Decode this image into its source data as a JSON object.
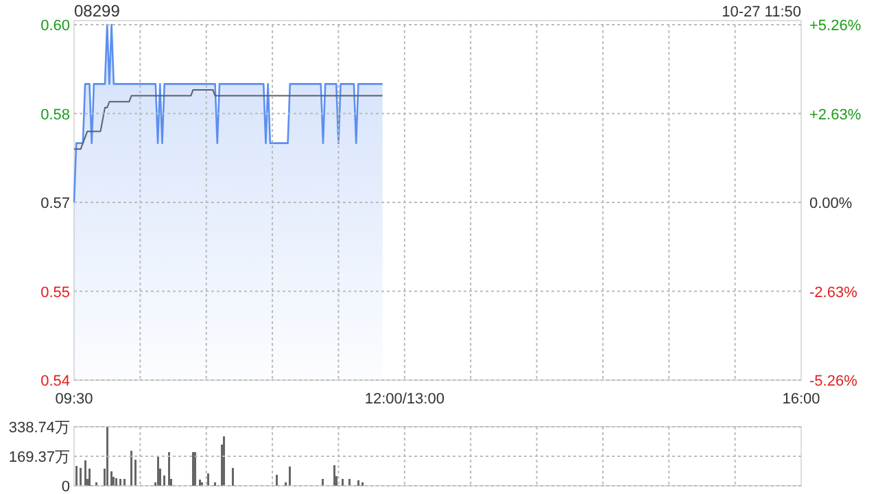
{
  "chart_data": [
    {
      "type": "line",
      "title": "08299",
      "annotations": [
        "10-27 11:50"
      ],
      "categories": [
        "09:30",
        null,
        null,
        null,
        null,
        null,
        null,
        null,
        null,
        null,
        null,
        null,
        null,
        null,
        null,
        null,
        null,
        null,
        null,
        null,
        null,
        null,
        null,
        null,
        null,
        null,
        null,
        null,
        null,
        null,
        null,
        null,
        null,
        null,
        null,
        null,
        null,
        null,
        null,
        null,
        null,
        null,
        null,
        null,
        null,
        null,
        null,
        null,
        null,
        null,
        null,
        null,
        null,
        null,
        null,
        null,
        null,
        null,
        null,
        null,
        null,
        null,
        null,
        null,
        null,
        null,
        null,
        null,
        null,
        null,
        null,
        null,
        null,
        null,
        null,
        null,
        null,
        null,
        null,
        null,
        null,
        null,
        null,
        null,
        null,
        null,
        null,
        null,
        null,
        null,
        null,
        null,
        null,
        null,
        null,
        null,
        null,
        null,
        null,
        null,
        null,
        null,
        null,
        null,
        null,
        null,
        null,
        null,
        null,
        null,
        null,
        null,
        null,
        null,
        null,
        null,
        null,
        null,
        null,
        null,
        null,
        null,
        null,
        null,
        null,
        null,
        null,
        null,
        null,
        null,
        null,
        null,
        null,
        null,
        null,
        null,
        null,
        null,
        null,
        null,
        null,
        null,
        null,
        null,
        null,
        null,
        null,
        null,
        null,
        null,
        "12:00/13:00",
        null,
        null,
        null,
        null,
        null,
        null,
        null,
        null,
        null,
        null,
        null,
        null,
        null,
        null,
        null,
        null,
        null,
        null,
        null,
        null,
        null,
        null,
        null,
        null,
        null,
        null,
        null,
        null,
        null,
        null,
        null,
        null,
        null,
        null,
        null,
        null,
        null,
        null,
        null,
        null,
        null,
        null,
        null,
        null,
        null,
        null,
        null,
        null,
        null,
        null,
        null,
        null,
        null,
        null,
        null,
        null,
        null,
        null,
        null,
        null,
        null,
        null,
        null,
        null,
        null,
        null,
        null,
        null,
        null,
        null,
        null,
        null,
        null,
        null,
        null,
        null,
        null,
        null,
        null,
        null,
        null,
        null,
        null,
        null,
        null,
        null,
        null,
        null,
        null,
        null,
        null,
        null,
        null,
        null,
        null,
        null,
        null,
        null,
        null,
        null,
        null,
        null,
        null,
        null,
        null,
        null,
        null,
        null,
        null,
        null,
        null,
        null,
        null,
        null,
        null,
        null,
        null,
        null,
        null,
        null,
        null,
        null,
        null,
        null,
        null,
        null,
        null,
        null,
        null,
        null,
        null,
        null,
        null,
        null,
        null,
        null,
        null,
        null,
        null,
        null,
        null,
        null,
        null,
        null,
        null,
        null,
        null,
        null,
        null,
        null,
        null,
        null,
        null,
        null,
        null,
        null,
        null,
        null,
        null,
        null,
        null,
        null,
        null,
        null,
        null,
        null,
        null,
        null,
        null,
        null,
        null,
        null,
        null,
        null,
        null,
        null,
        null,
        null,
        null,
        "16:00"
      ],
      "ylim": [
        0.54,
        0.6
      ],
      "yticks": [
        {
          "value": 0.54,
          "label": "0.54"
        },
        {
          "value": 0.555,
          "label": "0.55"
        },
        {
          "value": 0.57,
          "label": "0.57"
        },
        {
          "value": 0.585,
          "label": "0.58"
        },
        {
          "value": 0.6,
          "label": "0.60"
        }
      ],
      "y2lim": [
        -5.26,
        5.26
      ],
      "y2ticks": [
        {
          "value": -5.26,
          "label": "-5.26%"
        },
        {
          "value": -2.63,
          "label": "-2.63%"
        },
        {
          "value": 0,
          "label": "0.00%"
        },
        {
          "value": 2.63,
          "label": "+2.63%"
        },
        {
          "value": 5.26,
          "label": "+5.26%"
        }
      ],
      "grid": true,
      "series": [
        {
          "type": "area",
          "color": "#5b8ff0",
          "values": [
            0.57,
            0.58,
            0.58,
            0.58,
            0.58,
            0.59,
            0.59,
            0.59,
            0.58,
            0.59,
            0.59,
            0.59,
            0.59,
            0.59,
            0.59,
            0.6,
            0.59,
            0.6,
            0.59,
            0.59,
            0.59,
            0.59,
            0.59,
            0.59,
            0.59,
            0.59,
            0.59,
            0.59,
            0.59,
            0.59,
            0.59,
            0.59,
            0.59,
            0.59,
            0.59,
            0.59,
            0.59,
            0.59,
            0.58,
            0.59,
            0.58,
            0.59,
            0.59,
            0.59,
            0.59,
            0.59,
            0.59,
            0.59,
            0.59,
            0.59,
            0.59,
            0.59,
            0.59,
            0.59,
            0.59,
            0.59,
            0.59,
            0.59,
            0.59,
            0.59,
            0.59,
            0.59,
            0.59,
            0.59,
            0.59,
            0.58,
            0.59,
            0.59,
            0.59,
            0.59,
            0.59,
            0.59,
            0.59,
            0.59,
            0.59,
            0.59,
            0.59,
            0.59,
            0.59,
            0.59,
            0.59,
            0.59,
            0.59,
            0.59,
            0.59,
            0.59,
            0.59,
            0.58,
            0.59,
            0.58,
            0.58,
            0.58,
            0.58,
            0.58,
            0.58,
            0.58,
            0.58,
            0.58,
            0.59,
            0.59,
            0.59,
            0.59,
            0.59,
            0.59,
            0.59,
            0.59,
            0.59,
            0.59,
            0.59,
            0.59,
            0.59,
            0.59,
            0.59,
            0.58,
            0.59,
            0.59,
            0.59,
            0.59,
            0.59,
            0.59,
            0.58,
            0.59,
            0.59,
            0.59,
            0.59,
            0.59,
            0.59,
            0.59,
            0.58,
            0.59,
            0.59,
            0.59,
            0.59,
            0.59,
            0.59,
            0.59,
            0.59,
            0.59,
            0.59,
            0.59,
            0.59,
            null,
            null,
            null,
            null,
            null,
            null,
            null,
            null,
            null,
            null,
            null,
            null,
            null,
            null,
            null,
            null,
            null,
            null,
            null,
            null,
            null,
            null,
            null,
            null,
            null,
            null,
            null,
            null,
            null,
            null,
            null,
            null,
            null,
            null,
            null,
            null,
            null,
            null,
            null,
            null,
            null,
            null,
            null,
            null,
            null,
            null,
            null,
            null,
            null,
            null,
            null,
            null,
            null,
            null,
            null,
            null,
            null,
            null,
            null,
            null,
            null,
            null,
            null,
            null,
            null,
            null,
            null,
            null,
            null,
            null,
            null,
            null,
            null,
            null,
            null,
            null,
            null,
            null,
            null,
            null,
            null,
            null,
            null,
            null,
            null,
            null,
            null,
            null,
            null,
            null,
            null,
            null,
            null,
            null,
            null,
            null,
            null,
            null,
            null,
            null,
            null,
            null,
            null,
            null,
            null,
            null,
            null,
            null,
            null,
            null,
            null,
            null,
            null,
            null,
            null,
            null,
            null,
            null,
            null,
            null,
            null,
            null,
            null,
            null,
            null,
            null,
            null,
            null,
            null,
            null,
            null,
            null,
            null,
            null,
            null,
            null,
            null,
            null,
            null,
            null,
            null,
            null,
            null,
            null,
            null,
            null,
            null,
            null,
            null,
            null,
            null,
            null,
            null,
            null,
            null,
            null,
            null,
            null,
            null,
            null,
            null,
            null,
            null,
            null,
            null,
            null,
            null,
            null,
            null,
            null,
            null,
            null,
            null,
            null,
            null,
            null,
            null,
            null,
            null,
            null,
            null,
            null,
            null,
            null,
            null,
            null,
            null,
            null,
            null,
            null
          ]
        },
        {
          "type": "line",
          "color": "#5a5f6b",
          "values": [
            0.579,
            0.579,
            0.579,
            0.579,
            0.58,
            0.581,
            0.582,
            0.582,
            0.582,
            0.582,
            0.582,
            0.582,
            0.582,
            0.584,
            0.586,
            0.586,
            0.587,
            0.587,
            0.587,
            0.587,
            0.587,
            0.587,
            0.587,
            0.587,
            0.587,
            0.587,
            0.588,
            0.588,
            0.588,
            0.588,
            0.588,
            0.588,
            0.588,
            0.588,
            0.588,
            0.588,
            0.588,
            0.588,
            0.588,
            0.588,
            0.588,
            0.588,
            0.588,
            0.588,
            0.588,
            0.588,
            0.588,
            0.588,
            0.588,
            0.588,
            0.588,
            0.588,
            0.588,
            0.588,
            0.589,
            0.589,
            0.589,
            0.589,
            0.589,
            0.589,
            0.589,
            0.589,
            0.589,
            0.589,
            0.588,
            0.588,
            0.588,
            0.588,
            0.588,
            0.588,
            0.588,
            0.588,
            0.588,
            0.588,
            0.588,
            0.588,
            0.588,
            0.588,
            0.588,
            0.588,
            0.588,
            0.588,
            0.588,
            0.588,
            0.588,
            0.588,
            0.588,
            0.588,
            0.588,
            0.588,
            0.588,
            0.588,
            0.588,
            0.588,
            0.588,
            0.588,
            0.588,
            0.588,
            0.588,
            0.588,
            0.588,
            0.588,
            0.588,
            0.588,
            0.588,
            0.588,
            0.588,
            0.588,
            0.588,
            0.588,
            0.588,
            0.588,
            0.588,
            0.588,
            0.588,
            0.588,
            0.588,
            0.588,
            0.588,
            0.588,
            0.588,
            0.588,
            0.588,
            0.588,
            0.588,
            0.588,
            0.588,
            0.588,
            0.588,
            0.588,
            0.588,
            0.588,
            0.588,
            0.588,
            0.588,
            0.588,
            0.588,
            0.588,
            0.588,
            0.588,
            0.588,
            null,
            null,
            null,
            null,
            null,
            null,
            null,
            null,
            null,
            null,
            null,
            null,
            null,
            null,
            null,
            null,
            null,
            null,
            null,
            null,
            null,
            null,
            null,
            null,
            null,
            null,
            null,
            null,
            null,
            null,
            null,
            null,
            null,
            null,
            null,
            null,
            null,
            null,
            null,
            null,
            null,
            null,
            null,
            null,
            null,
            null,
            null,
            null,
            null,
            null,
            null,
            null,
            null,
            null,
            null,
            null,
            null,
            null,
            null,
            null,
            null,
            null,
            null,
            null,
            null,
            null,
            null,
            null,
            null,
            null,
            null,
            null,
            null,
            null,
            null,
            null,
            null,
            null,
            null,
            null,
            null,
            null,
            null,
            null,
            null,
            null,
            null,
            null,
            null,
            null,
            null,
            null,
            null,
            null,
            null,
            null,
            null,
            null,
            null,
            null,
            null,
            null,
            null,
            null,
            null,
            null,
            null,
            null,
            null,
            null,
            null,
            null,
            null,
            null,
            null,
            null,
            null,
            null,
            null,
            null,
            null,
            null,
            null,
            null,
            null,
            null,
            null,
            null,
            null,
            null,
            null,
            null,
            null,
            null,
            null,
            null,
            null,
            null,
            null,
            null,
            null,
            null,
            null,
            null,
            null,
            null,
            null,
            null,
            null,
            null,
            null,
            null,
            null,
            null,
            null,
            null,
            null,
            null,
            null,
            null,
            null,
            null,
            null,
            null,
            null,
            null,
            null,
            null,
            null,
            null,
            null,
            null,
            null,
            null,
            null,
            null,
            null,
            null,
            null,
            null,
            null,
            null,
            null,
            null,
            null,
            null,
            null,
            null,
            null,
            null
          ]
        }
      ]
    },
    {
      "type": "bar",
      "categories": [
        null,
        null,
        null,
        null,
        null,
        null,
        null,
        null,
        null,
        null,
        null,
        null,
        null,
        null,
        null,
        null,
        null,
        null,
        null,
        null,
        null,
        null,
        null,
        null,
        null,
        null,
        null,
        null,
        null,
        null,
        null,
        null,
        null,
        null,
        null,
        null,
        null,
        null,
        null,
        null,
        null,
        null,
        null,
        null,
        null,
        null,
        null,
        null,
        null,
        null,
        null,
        null,
        null,
        null,
        null,
        null,
        null,
        null,
        null,
        null,
        null,
        null,
        null,
        null,
        null,
        null,
        null,
        null,
        null,
        null,
        null,
        null,
        null,
        null,
        null,
        null,
        null,
        null,
        null,
        null,
        null,
        null,
        null,
        null,
        null,
        null,
        null,
        null,
        null,
        null,
        null,
        null,
        null,
        null,
        null,
        null,
        null,
        null,
        null,
        null,
        null,
        null,
        null,
        null,
        null,
        null,
        null,
        null,
        null,
        null,
        null,
        null,
        null,
        null,
        null,
        null,
        null,
        null,
        null,
        null,
        null,
        null,
        null,
        null,
        null,
        null,
        null,
        null,
        null,
        null,
        null,
        null,
        null,
        null,
        null,
        null,
        null,
        null,
        null,
        null,
        null,
        null,
        null,
        null,
        null,
        null,
        null,
        null,
        null,
        null,
        null,
        null,
        null,
        null,
        null,
        null,
        null,
        null,
        null,
        null,
        null,
        null,
        null,
        null,
        null,
        null,
        null,
        null,
        null,
        null,
        null,
        null,
        null,
        null,
        null,
        null,
        null,
        null,
        null,
        null,
        null,
        null,
        null,
        null,
        null,
        null,
        null,
        null,
        null,
        null,
        null,
        null,
        null,
        null,
        null,
        null,
        null,
        null,
        null,
        null,
        null,
        null,
        null,
        null,
        null,
        null,
        null,
        null,
        null,
        null,
        null,
        null,
        null,
        null,
        null,
        null,
        null,
        null,
        null,
        null,
        null,
        null,
        null,
        null,
        null,
        null,
        null,
        null,
        null,
        null,
        null,
        null,
        null,
        null,
        null,
        null,
        null,
        null,
        null,
        null,
        null,
        null,
        null,
        null,
        null,
        null,
        null,
        null,
        null,
        null,
        null,
        null,
        null,
        null,
        null,
        null,
        null,
        null,
        null,
        null,
        null,
        null,
        null,
        null,
        null,
        null,
        null,
        null,
        null,
        null,
        null,
        null,
        null,
        null,
        null,
        null,
        null,
        null,
        null,
        null,
        null,
        null,
        null,
        null,
        null,
        null,
        null,
        null,
        null,
        null,
        null,
        null,
        null,
        null,
        null,
        null,
        null,
        null,
        null,
        null,
        null,
        null,
        null,
        null,
        null,
        null,
        null,
        null,
        null,
        null,
        null,
        null,
        null,
        null,
        null,
        null,
        null,
        null,
        null,
        null,
        null,
        null,
        null,
        null,
        null,
        null,
        null,
        null,
        null,
        null,
        null
      ],
      "ylim": [
        0,
        338.74
      ],
      "yticks": [
        {
          "value": 0,
          "label": "0"
        },
        {
          "value": 169.37,
          "label": "169.37万"
        },
        {
          "value": 338.74,
          "label": "338.74万"
        }
      ],
      "tick_labels": "y",
      "grid": true,
      "color": "#666666",
      "values": [
        null,
        115,
        null,
        104,
        null,
        145,
        39,
        97,
        null,
        null,
        21,
        null,
        null,
        null,
        97,
        338,
        null,
        83,
        51,
        44,
        null,
        39,
        null,
        39,
        null,
        null,
        200,
        null,
        150,
        null,
        null,
        null,
        null,
        null,
        null,
        null,
        null,
        21,
        170,
        97,
        null,
        60,
        null,
        194,
        39,
        null,
        null,
        null,
        null,
        null,
        null,
        null,
        null,
        null,
        194,
        194,
        null,
        35,
        21,
        null,
        null,
        69,
        null,
        null,
        21,
        null,
        null,
        235,
        283,
        null,
        null,
        null,
        101,
        null,
        null,
        null,
        null,
        null,
        null,
        null,
        null,
        null,
        null,
        null,
        null,
        null,
        null,
        null,
        null,
        null,
        null,
        null,
        62,
        null,
        null,
        null,
        21,
        null,
        111,
        null,
        null,
        null,
        null,
        null,
        null,
        null,
        null,
        null,
        null,
        null,
        null,
        null,
        null,
        39,
        null,
        null,
        null,
        null,
        118,
        55,
        null,
        null,
        39,
        null,
        null,
        39,
        null,
        null,
        null,
        32,
        null,
        21,
        null,
        null,
        null,
        null,
        null,
        null,
        null,
        null,
        null,
        null,
        null,
        null,
        null,
        null,
        null,
        null,
        null,
        null,
        null,
        null,
        null,
        null,
        null,
        null,
        null,
        null,
        null,
        null,
        null,
        null,
        null,
        null,
        null,
        null,
        null,
        null,
        null,
        null,
        null,
        null,
        null,
        null,
        null,
        null,
        null,
        null,
        null,
        null,
        null,
        null,
        null,
        null,
        null,
        null,
        null,
        null,
        null,
        null,
        null,
        null,
        null,
        null,
        null,
        null,
        null,
        null,
        null,
        null,
        null,
        null,
        null,
        null,
        null,
        null,
        null,
        null,
        null,
        null,
        null,
        null,
        null,
        null,
        null,
        null,
        null,
        null,
        null,
        null,
        null,
        null,
        null,
        null,
        null,
        null,
        null,
        null,
        null,
        null,
        null,
        null,
        null,
        null,
        null,
        null,
        null,
        null,
        null,
        null,
        null,
        null,
        null,
        null,
        null,
        null,
        null,
        null,
        null,
        null,
        null,
        null,
        null,
        null,
        null,
        null,
        null,
        null,
        null,
        null,
        null,
        null,
        null,
        null,
        null,
        null,
        null,
        null,
        null,
        null,
        null,
        null,
        null,
        null,
        null,
        null,
        null,
        null,
        null,
        null,
        null,
        null,
        null,
        null,
        null,
        null,
        null,
        null,
        null,
        null,
        null,
        null,
        null,
        null,
        null,
        null,
        null,
        null,
        null,
        null,
        null,
        null,
        null,
        null,
        null,
        null,
        null,
        null,
        null,
        null,
        null,
        null,
        null,
        null,
        null,
        null,
        null,
        null,
        null,
        null,
        null,
        null,
        null,
        null,
        null,
        null,
        null,
        null,
        null,
        null,
        null
      ]
    }
  ]
}
